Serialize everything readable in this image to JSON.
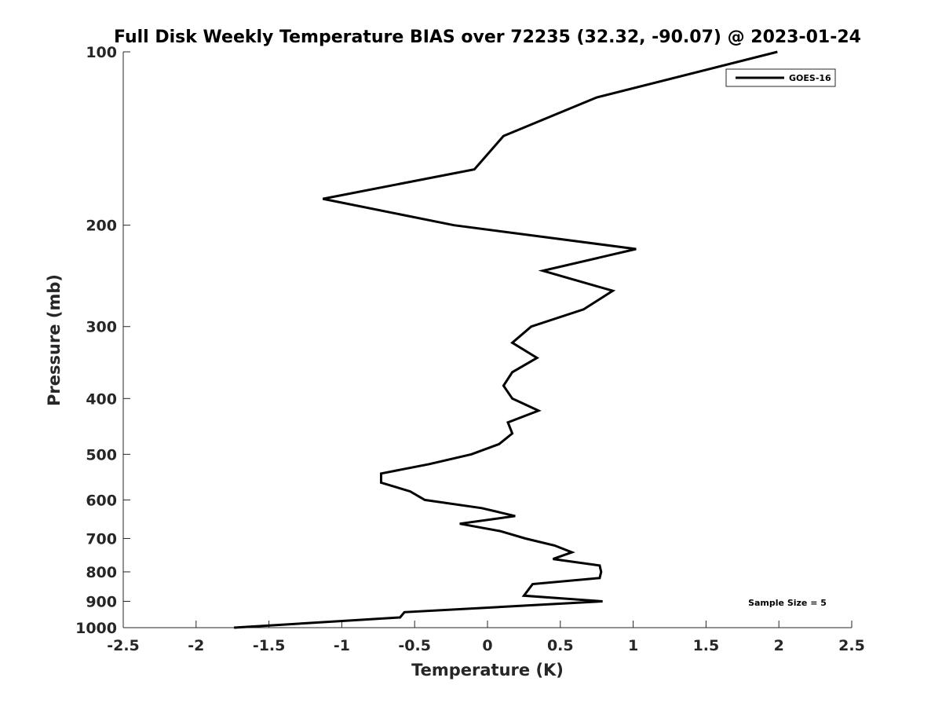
{
  "chart_data": {
    "type": "line",
    "title": "Full Disk Weekly Temperature BIAS over 72235 (32.32, -90.07) @ 2023-01-24",
    "xlabel": "Temperature (K)",
    "ylabel": "Pressure (mb)",
    "xlim": [
      -2.5,
      2.5
    ],
    "ylim": [
      100,
      1000
    ],
    "yscale": "log",
    "y_reversed": true,
    "grid": false,
    "xticks": [
      "-2.5",
      "-2",
      "-1.5",
      "-1",
      "-0.5",
      "0",
      "0.5",
      "1",
      "1.5",
      "2",
      "2.5"
    ],
    "xtick_values": [
      -2.5,
      -2,
      -1.5,
      -1,
      -0.5,
      0,
      0.5,
      1,
      1.5,
      2,
      2.5
    ],
    "yticks": [
      "100",
      "200",
      "300",
      "400",
      "500",
      "600",
      "700",
      "800",
      "900",
      "1000"
    ],
    "ytick_values": [
      100,
      200,
      300,
      400,
      500,
      600,
      700,
      800,
      900,
      1000
    ],
    "legend": {
      "placement": "top-right",
      "entries": [
        "GOES-16"
      ]
    },
    "annotation": "Sample Size = 5",
    "series": [
      {
        "name": "GOES-16",
        "color": "#000000",
        "pressure": [
          100,
          120,
          140,
          160,
          180,
          200,
          220,
          240,
          260,
          280,
          300,
          320,
          340,
          360,
          380,
          400,
          420,
          440,
          460,
          480,
          500,
          520,
          540,
          560,
          580,
          600,
          620,
          640,
          660,
          680,
          700,
          720,
          740,
          760,
          780,
          800,
          820,
          840,
          880,
          900,
          940,
          960,
          1000
        ],
        "temperature": [
          1.99,
          0.75,
          0.11,
          -0.09,
          -1.13,
          -0.23,
          1.02,
          0.38,
          0.86,
          0.66,
          0.3,
          0.17,
          0.34,
          0.17,
          0.11,
          0.17,
          0.35,
          0.14,
          0.17,
          0.08,
          -0.11,
          -0.4,
          -0.73,
          -0.73,
          -0.53,
          -0.43,
          -0.04,
          0.19,
          -0.19,
          0.09,
          0.26,
          0.46,
          0.58,
          0.45,
          0.77,
          0.78,
          0.77,
          0.31,
          0.25,
          0.79,
          -0.57,
          -0.6,
          -1.74
        ]
      }
    ]
  }
}
